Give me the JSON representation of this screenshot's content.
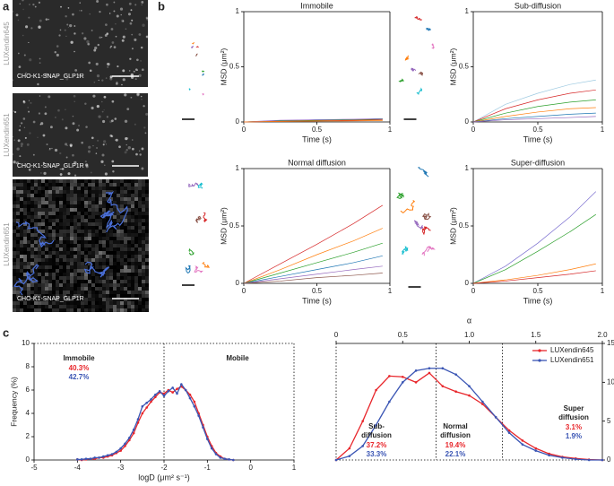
{
  "panel_labels": {
    "a": "a",
    "b": "b",
    "c": "c"
  },
  "images": [
    {
      "label": "LUXendin645",
      "caption": "CHO-K1-SNAP_GLP1R"
    },
    {
      "label": "LUXendin651",
      "caption": "CHO-K1-SNAP_GLP1R"
    },
    {
      "label": "LUXendin651",
      "caption": "CHO-K1-SNAP_GLP1R"
    }
  ],
  "chart_data": [
    {
      "type": "line",
      "title": "Immobile",
      "xlabel": "Time (s)",
      "ylabel": "MSD (μm²)",
      "xlim": [
        0,
        1
      ],
      "ylim": [
        0,
        1
      ],
      "xticks": [
        0,
        0.5,
        1
      ],
      "yticks": [
        0,
        0.5,
        1
      ],
      "x": [
        0,
        0.25,
        0.5,
        0.75,
        0.95
      ],
      "series": [
        {
          "color": "#1f77b4",
          "values": [
            0,
            0.01,
            0.02,
            0.02,
            0.03
          ]
        },
        {
          "color": "#2ca02c",
          "values": [
            0,
            0.01,
            0.015,
            0.02,
            0.025
          ]
        },
        {
          "color": "#d62728",
          "values": [
            0,
            0.005,
            0.01,
            0.015,
            0.02
          ]
        },
        {
          "color": "#9467bd",
          "values": [
            0,
            0.015,
            0.02,
            0.025,
            0.03
          ]
        },
        {
          "color": "#ff7f0e",
          "values": [
            0,
            0.005,
            0.008,
            0.01,
            0.012
          ]
        }
      ]
    },
    {
      "type": "line",
      "title": "Sub-diffusion",
      "xlabel": "Time (s)",
      "ylabel": "MSD (μm²)",
      "xlim": [
        0,
        1
      ],
      "ylim": [
        0,
        1
      ],
      "xticks": [
        0,
        0.5,
        1
      ],
      "yticks": [
        0,
        0.5,
        1
      ],
      "x": [
        0,
        0.25,
        0.5,
        0.75,
        0.95
      ],
      "series": [
        {
          "color": "#9ecae1",
          "values": [
            0,
            0.16,
            0.26,
            0.34,
            0.38
          ]
        },
        {
          "color": "#d62728",
          "values": [
            0,
            0.12,
            0.2,
            0.26,
            0.29
          ]
        },
        {
          "color": "#2ca02c",
          "values": [
            0,
            0.08,
            0.14,
            0.18,
            0.2
          ]
        },
        {
          "color": "#ff7f0e",
          "values": [
            0,
            0.05,
            0.09,
            0.12,
            0.13
          ]
        },
        {
          "color": "#1f77b4",
          "values": [
            0,
            0.03,
            0.05,
            0.07,
            0.08
          ]
        },
        {
          "color": "#9467bd",
          "values": [
            0,
            0.02,
            0.03,
            0.04,
            0.05
          ]
        }
      ]
    },
    {
      "type": "line",
      "title": "Normal diffusion",
      "xlabel": "Time (s)",
      "ylabel": "MSD (μm²)",
      "xlim": [
        0,
        1
      ],
      "ylim": [
        0,
        1
      ],
      "xticks": [
        0,
        0.5,
        1
      ],
      "yticks": [
        0,
        0.5,
        1
      ],
      "x": [
        0,
        0.25,
        0.5,
        0.75,
        0.95
      ],
      "series": [
        {
          "color": "#d62728",
          "values": [
            0,
            0.17,
            0.34,
            0.52,
            0.68
          ]
        },
        {
          "color": "#ff7f0e",
          "values": [
            0,
            0.12,
            0.25,
            0.37,
            0.48
          ]
        },
        {
          "color": "#2ca02c",
          "values": [
            0,
            0.09,
            0.18,
            0.27,
            0.35
          ]
        },
        {
          "color": "#1f77b4",
          "values": [
            0,
            0.06,
            0.12,
            0.18,
            0.24
          ]
        },
        {
          "color": "#9467bd",
          "values": [
            0,
            0.04,
            0.08,
            0.12,
            0.15
          ]
        },
        {
          "color": "#8c564b",
          "values": [
            0,
            0.02,
            0.05,
            0.07,
            0.09
          ]
        }
      ]
    },
    {
      "type": "line",
      "title": "Super-diffusion",
      "xlabel": "Time (s)",
      "ylabel": "MSD (μm²)",
      "xlim": [
        0,
        1
      ],
      "ylim": [
        0,
        1
      ],
      "xticks": [
        0,
        0.5,
        1
      ],
      "yticks": [
        0,
        0.5,
        1
      ],
      "x": [
        0,
        0.25,
        0.5,
        0.75,
        0.95
      ],
      "series": [
        {
          "color": "#7b6fd0",
          "values": [
            0,
            0.15,
            0.35,
            0.58,
            0.8
          ]
        },
        {
          "color": "#2ca02c",
          "values": [
            0,
            0.12,
            0.28,
            0.45,
            0.6
          ]
        },
        {
          "color": "#ff7f0e",
          "values": [
            0,
            0.03,
            0.07,
            0.12,
            0.17
          ]
        },
        {
          "color": "#d62728",
          "values": [
            0,
            0.02,
            0.05,
            0.08,
            0.11
          ]
        }
      ]
    },
    {
      "type": "line",
      "marker": true,
      "xlabel": "logD (μm² s⁻¹)",
      "ylabel": "Frequency (%)",
      "xlim": [
        -5,
        1
      ],
      "ylim": [
        0,
        10
      ],
      "xticks": [
        -5,
        -4,
        -3,
        -2,
        -1,
        0,
        1
      ],
      "yticks": [
        0,
        2,
        4,
        6,
        8,
        10
      ],
      "dividers": [
        -2
      ],
      "x": [
        -4.0,
        -3.9,
        -3.8,
        -3.7,
        -3.6,
        -3.5,
        -3.4,
        -3.3,
        -3.2,
        -3.1,
        -3.0,
        -2.9,
        -2.8,
        -2.7,
        -2.6,
        -2.5,
        -2.4,
        -2.3,
        -2.2,
        -2.1,
        -2.0,
        -1.9,
        -1.8,
        -1.7,
        -1.6,
        -1.5,
        -1.4,
        -1.3,
        -1.2,
        -1.1,
        -1.0,
        -0.9,
        -0.8,
        -0.7,
        -0.6,
        -0.5,
        -0.4
      ],
      "series": [
        {
          "color": "#e8262b",
          "values": [
            0.05,
            0,
            0.05,
            0.1,
            0.1,
            0.2,
            0.2,
            0.3,
            0.4,
            0.6,
            0.8,
            1.2,
            1.7,
            2.3,
            3.2,
            4.0,
            4.5,
            5.0,
            5.4,
            5.8,
            5.7,
            6.0,
            5.8,
            6.1,
            6.3,
            6.0,
            5.6,
            5.0,
            4.0,
            3.0,
            2.0,
            1.2,
            0.6,
            0.3,
            0.1,
            0.05,
            0
          ]
        },
        {
          "color": "#3a55b4",
          "values": [
            0.05,
            0.05,
            0.1,
            0.1,
            0.2,
            0.2,
            0.3,
            0.4,
            0.5,
            0.7,
            1.0,
            1.4,
            1.9,
            2.6,
            3.5,
            4.6,
            4.9,
            5.2,
            5.6,
            5.9,
            5.5,
            5.9,
            6.2,
            5.7,
            6.5,
            6.0,
            5.3,
            4.6,
            3.8,
            2.8,
            1.8,
            1.0,
            0.5,
            0.2,
            0.1,
            0.05,
            0
          ]
        }
      ],
      "annotations": [
        {
          "text": "Immobile"
        },
        {
          "text": "40.3%",
          "color": "#e8262b"
        },
        {
          "text": "42.7%",
          "color": "#3a55b4"
        },
        {
          "text": "Mobile"
        }
      ]
    },
    {
      "type": "line",
      "marker": true,
      "xlabel": "α",
      "legend": "upper right",
      "xlim": [
        0,
        2
      ],
      "ylim": [
        0,
        15
      ],
      "xticks": [
        0,
        0.5,
        {
          "value": 1,
          "label": "1.0"
        },
        1.5,
        {
          "value": 2,
          "label": "2.0"
        }
      ],
      "yticks": [
        0,
        5,
        10,
        15
      ],
      "dividers": [
        0.75,
        1.25
      ],
      "x": [
        0,
        0.1,
        0.2,
        0.3,
        0.4,
        0.5,
        0.6,
        0.7,
        0.8,
        0.9,
        1.0,
        1.1,
        1.2,
        1.3,
        1.4,
        1.5,
        1.6,
        1.7,
        1.8,
        1.9,
        2.0
      ],
      "series": [
        {
          "name": "LUXendin645",
          "color": "#e8262b",
          "values": [
            0,
            1.5,
            5,
            9,
            10.8,
            10.7,
            10,
            11.2,
            9.5,
            8.8,
            8.3,
            7.2,
            5.5,
            3.8,
            2.5,
            1.5,
            0.8,
            0.4,
            0.2,
            0.05,
            0
          ]
        },
        {
          "name": "LUXendin651",
          "color": "#3a55b4",
          "values": [
            0,
            0.5,
            1.8,
            4.5,
            7.5,
            10,
            11.5,
            11.8,
            11.8,
            11,
            9.5,
            7.5,
            5.5,
            3.5,
            2.0,
            1.2,
            0.6,
            0.3,
            0.1,
            0,
            0
          ]
        }
      ],
      "annotations": [
        {
          "text": "Sub-"
        },
        {
          "text": "diffusion"
        },
        {
          "text": "37.2%",
          "color": "#e8262b"
        },
        {
          "text": "33.3%",
          "color": "#3a55b4"
        },
        {
          "text": "Normal"
        },
        {
          "text": "diffusion"
        },
        {
          "text": "19.4%",
          "color": "#e8262b"
        },
        {
          "text": "22.1%",
          "color": "#3a55b4"
        },
        {
          "text": "Super"
        },
        {
          "text": "diffusion"
        },
        {
          "text": "3.1%",
          "color": "#e8262b"
        },
        {
          "text": "1.9%",
          "color": "#3a55b4"
        }
      ]
    }
  ]
}
